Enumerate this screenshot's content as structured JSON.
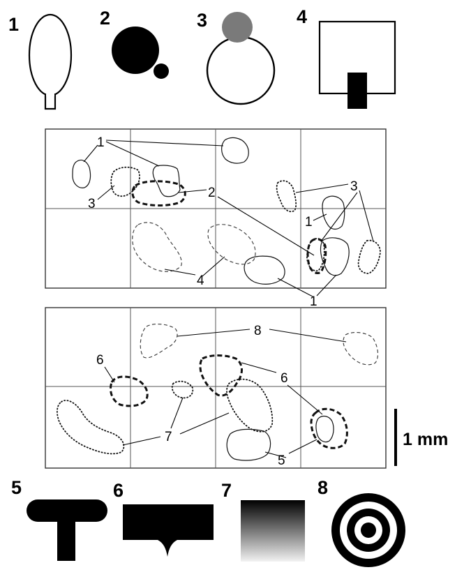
{
  "key_top": [
    {
      "number": "1",
      "icon": "ellipse-with-stem-icon"
    },
    {
      "number": "2",
      "icon": "black-circle-with-knob-icon"
    },
    {
      "number": "3",
      "icon": "circle-with-grey-cap-icon"
    },
    {
      "number": "4",
      "icon": "square-with-black-block-icon"
    }
  ],
  "key_bottom": [
    {
      "number": "5",
      "icon": "black-t-shape-icon"
    },
    {
      "number": "6",
      "icon": "black-rectangle-with-point-icon"
    },
    {
      "number": "7",
      "icon": "grey-gradient-square-icon"
    },
    {
      "number": "8",
      "icon": "concentric-rings-icon"
    }
  ],
  "panel_top": {
    "callouts": {
      "c1_top": "1",
      "c3_left": "3",
      "c2": "2",
      "c3_right": "3",
      "c1_right": "1",
      "c4": "4",
      "c1_bottom": "1"
    }
  },
  "panel_bottom": {
    "callouts": {
      "c8": "8",
      "c6_left": "6",
      "c6_right": "6",
      "c7": "7",
      "c5": "5"
    }
  },
  "scale_bar": {
    "label": "1 mm"
  },
  "colors": {
    "ink": "#000000",
    "grey_cap": "#7a7a7a",
    "grid": "#555555"
  }
}
